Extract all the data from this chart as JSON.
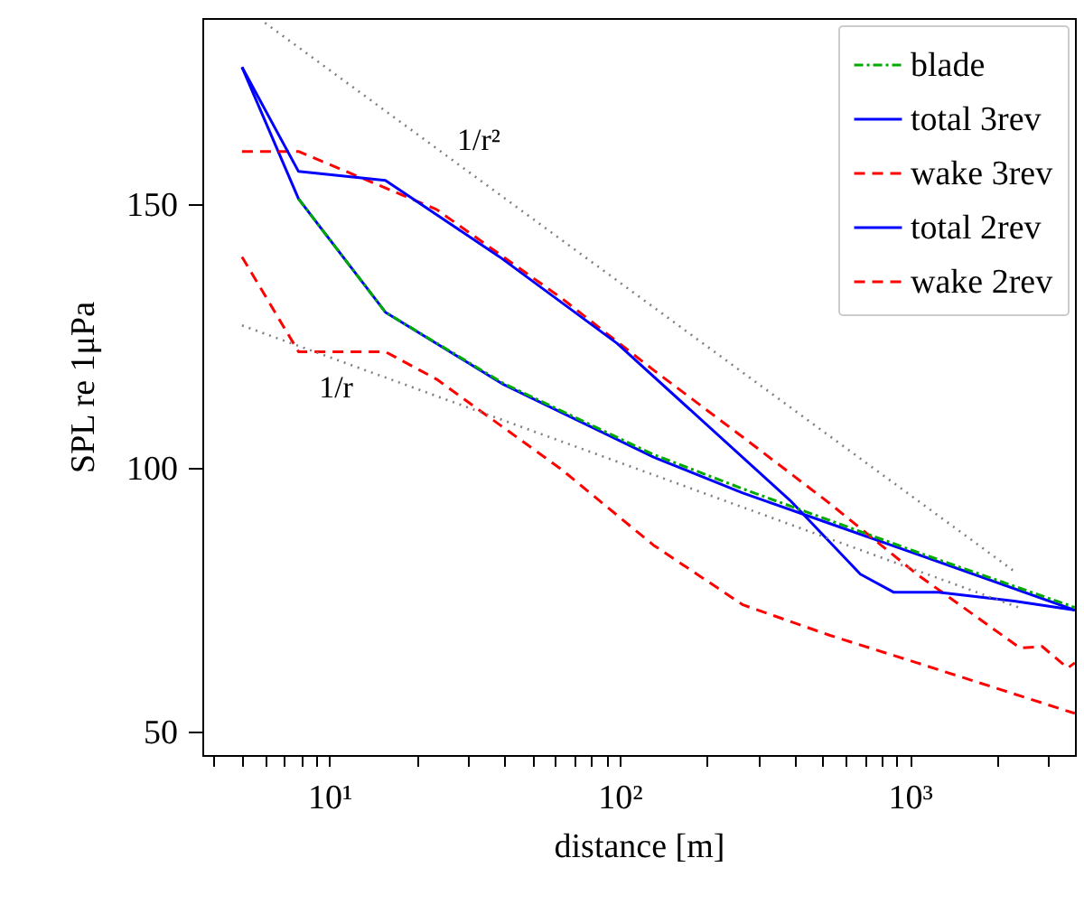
{
  "chart_data": {
    "type": "line",
    "xlabel": "distance [m]",
    "ylabel": "SPL re 1μPa",
    "log": "x",
    "xlim": [
      3.65,
      3710
    ],
    "ylim": [
      45.5,
      185.3
    ],
    "xticks": [
      {
        "value": 4,
        "label": null
      },
      {
        "value": 5,
        "label": null
      },
      {
        "value": 6,
        "label": null
      },
      {
        "value": 7,
        "label": null
      },
      {
        "value": 8,
        "label": null
      },
      {
        "value": 9,
        "label": null
      },
      {
        "value": 10,
        "label": "10¹"
      },
      {
        "value": 20,
        "label": null
      },
      {
        "value": 30,
        "label": null
      },
      {
        "value": 40,
        "label": null
      },
      {
        "value": 50,
        "label": null
      },
      {
        "value": 60,
        "label": null
      },
      {
        "value": 70,
        "label": null
      },
      {
        "value": 80,
        "label": null
      },
      {
        "value": 90,
        "label": null
      },
      {
        "value": 100,
        "label": "10²"
      },
      {
        "value": 200,
        "label": null
      },
      {
        "value": 300,
        "label": null
      },
      {
        "value": 400,
        "label": null
      },
      {
        "value": 500,
        "label": null
      },
      {
        "value": 600,
        "label": null
      },
      {
        "value": 700,
        "label": null
      },
      {
        "value": 800,
        "label": null
      },
      {
        "value": 900,
        "label": null
      },
      {
        "value": 1000,
        "label": "10³"
      },
      {
        "value": 2000,
        "label": null
      },
      {
        "value": 3000,
        "label": null
      }
    ],
    "yticks": [
      50,
      100,
      150
    ],
    "legend": "top right",
    "series": [
      {
        "color": "#808080",
        "line_style": "dotted",
        "x": [
          6,
          2340
        ],
        "values": [
          184.4,
          80
        ]
      },
      {
        "color": "#808080",
        "line_style": "dotted",
        "x": [
          5,
          2400
        ],
        "values": [
          127,
          73.4
        ]
      },
      {
        "name": "blade",
        "color": "#00aa00",
        "line_style": "dashdot",
        "x": [
          7.83,
          15.6,
          39.8,
          131,
          266,
          531,
          1059,
          3706
        ],
        "values": [
          151,
          129.5,
          116,
          102.5,
          96,
          90,
          84,
          73.5
        ]
      },
      {
        "name": "total 3rev",
        "color": "#0000ff",
        "line_style": "solid",
        "x": [
          5,
          7.83,
          15.6,
          38.6,
          98,
          387,
          676,
          879,
          1256,
          2290,
          3706
        ],
        "values": [
          176,
          156.2,
          154.5,
          140,
          123.6,
          93.8,
          79.8,
          76.4,
          76.4,
          74.7,
          73
        ]
      },
      {
        "name": "wake 3rev",
        "color": "#ff0000",
        "line_style": "dashed",
        "x": [
          5,
          7.83,
          23.4,
          63,
          129,
          266,
          531,
          1059,
          2400,
          2860,
          3500,
          3706
        ],
        "values": [
          160,
          160,
          149,
          132.2,
          118.8,
          105.8,
          93.2,
          79.8,
          65.8,
          66.1,
          62,
          63
        ]
      },
      {
        "name": "total 2rev",
        "color": "#0000ff",
        "line_style": "solid",
        "x": [
          5,
          7.83,
          15.6,
          39.8,
          131,
          266,
          531,
          1059,
          3706
        ],
        "values": [
          176,
          151,
          129.5,
          115.8,
          102,
          95.2,
          89.4,
          83.6,
          73
        ]
      },
      {
        "name": "wake 2rev",
        "color": "#ff0000",
        "line_style": "dashed",
        "x": [
          5,
          7.83,
          15.6,
          23.4,
          63,
          131,
          266,
          531,
          1059,
          3706
        ],
        "values": [
          140,
          122,
          122,
          116.8,
          99.7,
          85.3,
          74,
          68.2,
          63,
          53.4
        ]
      }
    ],
    "annotations": [
      "1/r²",
      "1/r"
    ]
  }
}
